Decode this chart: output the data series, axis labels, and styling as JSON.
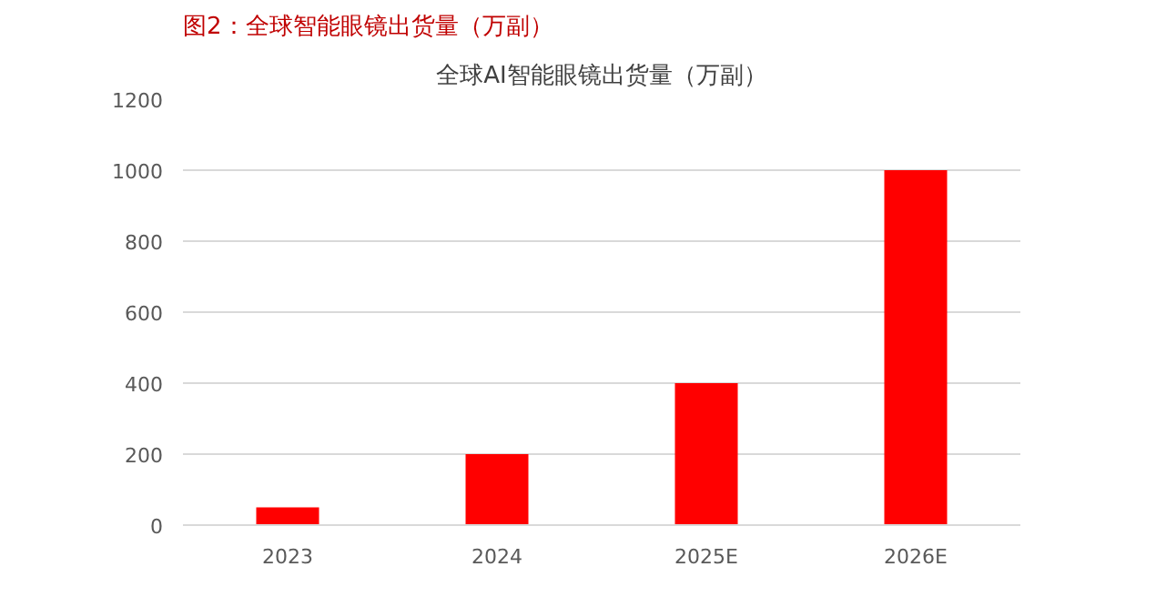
{
  "chart_data": {
    "type": "bar",
    "title": "图2：全球智能眼镜出货量（万副）",
    "subtitle": "全球AI智能眼镜出货量（万副）",
    "categories": [
      "2023",
      "2024",
      "2025E",
      "2026E"
    ],
    "values": [
      50,
      200,
      400,
      1000
    ],
    "color": "#ff0000",
    "ylim": [
      0,
      1200
    ],
    "yticks": [
      0,
      200,
      400,
      600,
      800,
      1000,
      1200
    ],
    "grid": "y"
  }
}
